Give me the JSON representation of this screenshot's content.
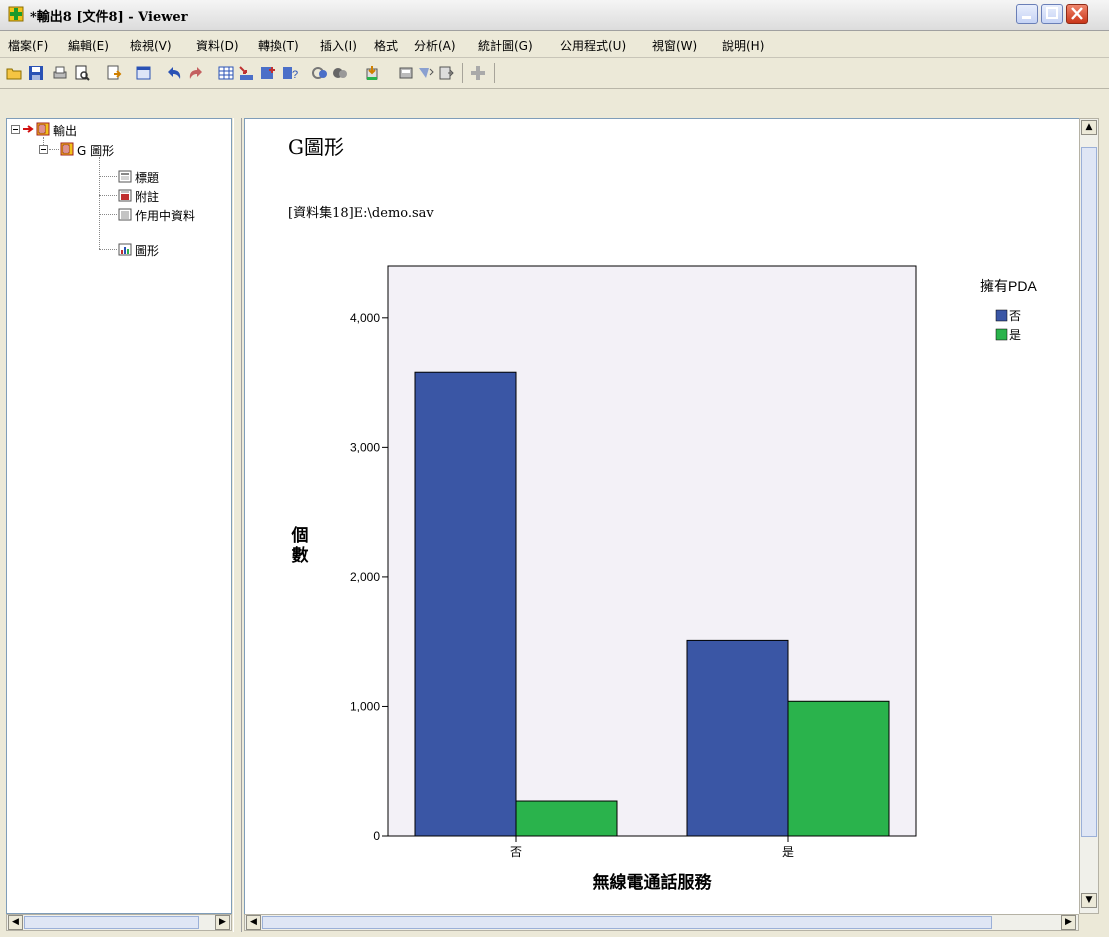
{
  "window": {
    "title": "*輸出8 [文件8] - Viewer",
    "minimize_label": "_",
    "maximize_label": "□",
    "close_label": "✕"
  },
  "menu": [
    "檔案(F)",
    "編輯(E)",
    "檢視(V)",
    "資料(D)",
    "轉換(T)",
    "插入(I)",
    "格式",
    "分析(A)",
    "統計圖(G)",
    "公用程式(U)",
    "視窗(W)",
    "說明(H)"
  ],
  "toolbar_icons": [
    "open-icon",
    "save-icon",
    "print-icon",
    "print-preview-icon",
    "export-icon",
    "dialog-recall-icon",
    "undo-icon",
    "redo-icon",
    "goto-data-icon",
    "goto-case-icon",
    "variables-icon",
    "use-sets-icon",
    "select-cases-icon",
    "weight-cases-icon",
    "split-file-icon",
    "value-labels-icon",
    "insert-heading-icon",
    "insert-title-icon",
    "insert-text-icon",
    "promote-icon"
  ],
  "outline": {
    "root": "輸出",
    "graph_node": "G 圖形",
    "items": [
      "標題",
      "附註",
      "作用中資料",
      "圖形"
    ]
  },
  "output": {
    "heading": "G圖形",
    "dataset": "[資料集18]E:\\demo.sav"
  },
  "chart_data": {
    "type": "bar",
    "categories": [
      "否",
      "是"
    ],
    "series": [
      {
        "name": "否",
        "values": [
          3580,
          1510
        ],
        "color": "#3a56a5"
      },
      {
        "name": "是",
        "values": [
          270,
          1040
        ],
        "color": "#2ab34c"
      }
    ],
    "xlabel": "無線電通話服務",
    "ylabel": "個數",
    "ylim": [
      0,
      4400
    ],
    "yticks": [
      0,
      1000,
      2000,
      3000,
      4000
    ],
    "ytick_labels": [
      "0",
      "1,000",
      "2,000",
      "3,000",
      "4,000"
    ],
    "legend_title": "擁有PDA",
    "legend_position": "right",
    "grid": false
  }
}
